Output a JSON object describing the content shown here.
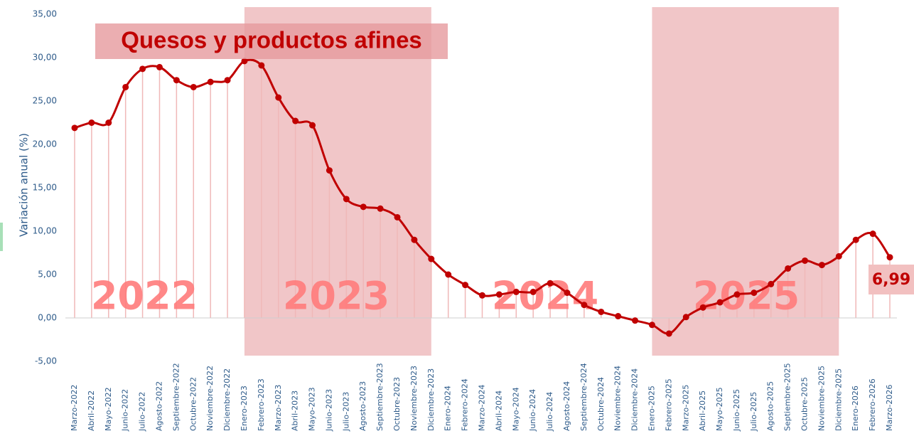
{
  "chart_data": {
    "type": "line",
    "title": "Quesos y productos afines",
    "y_label": "Variación anual (%)",
    "categories": [
      "Marzo-2022",
      "Abril-2022",
      "Mayo-2022",
      "Junio-2022",
      "Julio-2022",
      "Agosto-2022",
      "Septiembre-2022",
      "Octubre-2022",
      "Noviembre-2022",
      "Diciembre-2022",
      "Enero-2023",
      "Febrero-2023",
      "Marzo-2023",
      "Abril-2023",
      "Mayo-2023",
      "Junio-2023",
      "Julio-2023",
      "Agosto-2023",
      "Septiembre-2023",
      "Octubre-2023",
      "Noviembre-2023",
      "Diciembre-2023",
      "Enero-2024",
      "Febrero-2024",
      "Marzo-2024",
      "Abril-2024",
      "Mayo-2024",
      "Junio-2024",
      "Julio-2024",
      "Agosto-2024",
      "Septiembre-2024",
      "Octubre-2024",
      "Noviembre-2024",
      "Diciembre-2024",
      "Enero-2025",
      "Febrero-2025",
      "Marzo-2025",
      "Abril-2025",
      "Mayo-2025",
      "Junio-2025",
      "Julio-2025",
      "Agosto-2025",
      "Septiembre-2025",
      "Octubre-2025",
      "Noviembre-2025",
      "Diciembre-2025",
      "Enero-2026",
      "Febrero-2026",
      "Marzo-2026"
    ],
    "series": [
      {
        "name": "Quesos y productos afines",
        "color": "#c00000",
        "values": [
          21.9,
          22.5,
          22.5,
          26.6,
          28.7,
          28.9,
          27.4,
          26.6,
          27.2,
          27.4,
          29.6,
          29.1,
          25.4,
          22.7,
          22.2,
          17.0,
          13.7,
          12.8,
          12.6,
          11.6,
          9.0,
          6.8,
          5.0,
          3.8,
          2.6,
          2.7,
          3.0,
          3.0,
          4.0,
          2.9,
          1.5,
          0.7,
          0.2,
          -0.3,
          -0.8,
          -1.8,
          0.1,
          1.2,
          1.8,
          2.7,
          2.9,
          3.9,
          5.7,
          6.6,
          6.1,
          7.1,
          9.0,
          9.7,
          6.99
        ],
        "value_labels": [
          null,
          null,
          null,
          null,
          null,
          null,
          null,
          null,
          null,
          null,
          null,
          null,
          null,
          null,
          null,
          null,
          null,
          null,
          null,
          null,
          null,
          null,
          null,
          null,
          null,
          null,
          null,
          null,
          null,
          null,
          null,
          null,
          null,
          null,
          null,
          null,
          null,
          null,
          null,
          null,
          null,
          null,
          null,
          null,
          null,
          null,
          null,
          null,
          "6,99"
        ]
      }
    ],
    "year_labels": [
      "2022",
      "2023",
      "2024",
      "2025"
    ],
    "ylim": [
      -5,
      35
    ],
    "yticks": [
      {
        "value": -5,
        "label": "-5,00"
      },
      {
        "value": 0,
        "label": "0,00"
      },
      {
        "value": 5,
        "label": "5,00"
      },
      {
        "value": 10,
        "label": "10,00"
      },
      {
        "value": 15,
        "label": "15,00"
      },
      {
        "value": 20,
        "label": "20,00"
      },
      {
        "value": 25,
        "label": "25,00"
      },
      {
        "value": 30,
        "label": "30,00"
      },
      {
        "value": 35,
        "label": "35,00"
      }
    ]
  }
}
